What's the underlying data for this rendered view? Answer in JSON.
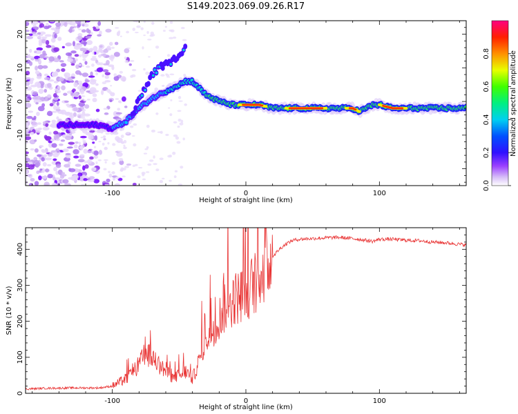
{
  "title": "S149.2023.069.09.26.R17",
  "chart_data": [
    {
      "type": "heatmap",
      "xlabel": "Height of straight line (km)",
      "ylabel": "Frequency (Hz)",
      "xlim": [
        -165,
        165
      ],
      "ylim": [
        -25,
        24
      ],
      "xticks": [
        -100,
        0,
        100
      ],
      "yticks": [
        -20,
        -10,
        0,
        10,
        20
      ],
      "colorbar": {
        "label": "Normalized spectral amplitude",
        "range": [
          0,
          1
        ],
        "ticks": [
          0.0,
          0.2,
          0.4,
          0.6,
          0.8
        ],
        "colormap": [
          "#ffffff",
          "#c8a8f0",
          "#7a00ff",
          "#0000ff",
          "#00c8ff",
          "#00ff40",
          "#ffff00",
          "#ff8000",
          "#ff0000",
          "#ff0080"
        ]
      },
      "ridge": {
        "x": [
          -140,
          -110,
          -100,
          -90,
          -80,
          -70,
          -60,
          -50,
          -45,
          -40,
          -35,
          -30,
          -20,
          -10,
          0,
          10,
          20,
          30,
          40,
          50,
          60,
          70,
          80,
          85,
          90,
          95,
          100,
          110,
          120,
          130,
          140,
          150,
          160,
          165
        ],
        "y": [
          -7,
          -7,
          -8,
          -6,
          -2,
          1,
          3,
          5,
          6,
          6,
          4,
          2,
          0,
          -1,
          -1,
          -1,
          -2,
          -2,
          -2,
          -2,
          -2,
          -2,
          -2,
          -3,
          -2,
          -1,
          -1,
          -2,
          -2,
          -2,
          -2,
          -2,
          -2,
          -2
        ]
      },
      "branch": {
        "x": [
          -85,
          -80,
          -75,
          -70,
          -65,
          -60,
          -55,
          -50,
          -45
        ],
        "y": [
          -4,
          1,
          4,
          8,
          10,
          11,
          12,
          14,
          16
        ]
      }
    },
    {
      "type": "line",
      "xlabel": "Height of straight line (km)",
      "ylabel": "SNR (10 * v/v)",
      "xlim": [
        -165,
        165
      ],
      "ylim": [
        0,
        460
      ],
      "xticks": [
        -100,
        0,
        100
      ],
      "yticks": [
        0,
        100,
        200,
        300,
        400
      ],
      "color": "#e83030",
      "x": [
        -165,
        -150,
        -130,
        -110,
        -100,
        -95,
        -90,
        -85,
        -80,
        -75,
        -70,
        -65,
        -60,
        -55,
        -50,
        -45,
        -40,
        -35,
        -30,
        -25,
        -20,
        -15,
        -10,
        -5,
        0,
        5,
        10,
        15,
        20,
        25,
        30,
        35,
        40,
        50,
        60,
        70,
        80,
        90,
        95,
        100,
        110,
        120,
        130,
        140,
        150,
        160,
        165
      ],
      "y": [
        12,
        14,
        15,
        15,
        20,
        30,
        40,
        55,
        80,
        110,
        100,
        80,
        60,
        45,
        50,
        60,
        40,
        90,
        150,
        180,
        210,
        240,
        260,
        270,
        280,
        300,
        330,
        350,
        380,
        400,
        415,
        425,
        428,
        430,
        432,
        433,
        430,
        425,
        422,
        428,
        428,
        425,
        424,
        420,
        418,
        414,
        412
      ]
    }
  ]
}
